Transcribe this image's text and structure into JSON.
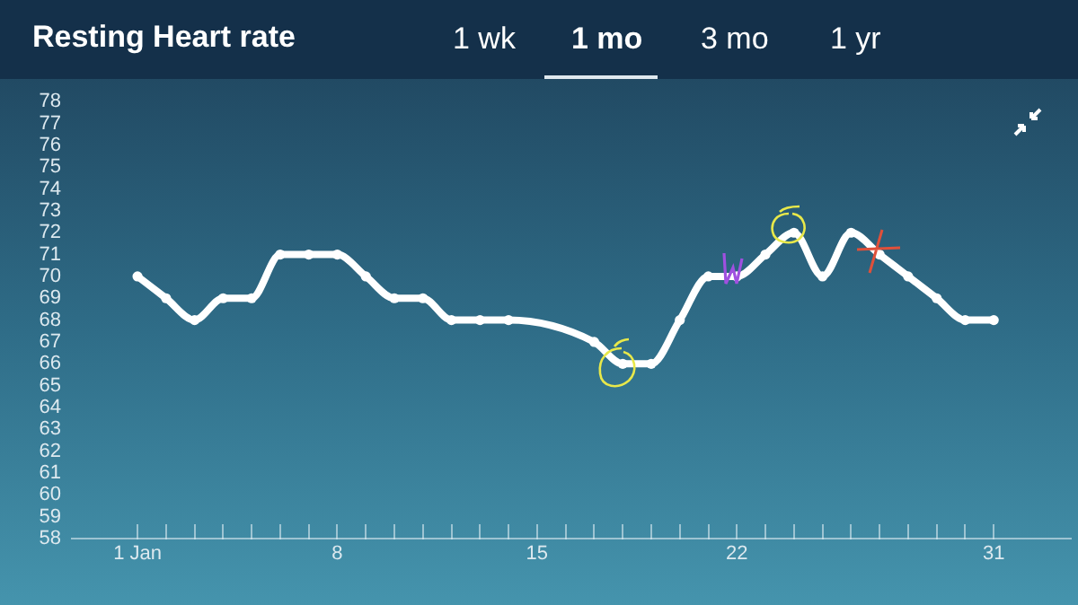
{
  "chart_data": {
    "type": "line",
    "title": "Resting Heart rate",
    "annotations": [
      "1 wk",
      "1 mo",
      "3 mo",
      "1 yr"
    ],
    "x": [
      1,
      2,
      3,
      4,
      5,
      6,
      7,
      8,
      9,
      10,
      11,
      12,
      13,
      14,
      15,
      16,
      17,
      18,
      19,
      20,
      21,
      22,
      23,
      24,
      25,
      26,
      27,
      28,
      29,
      30,
      31
    ],
    "series": [
      {
        "color": "#ffffff",
        "values": [
          70,
          69,
          68,
          69,
          69,
          71,
          71,
          71,
          70,
          69,
          69,
          68,
          68,
          68,
          null,
          null,
          67,
          66,
          66,
          68,
          70,
          70,
          71,
          72,
          70,
          72,
          71,
          70,
          69,
          68,
          68
        ]
      }
    ],
    "xlim": [
      -1.3,
      33.7
    ],
    "xticks": [
      {
        "value": 1,
        "label": "1 Jan"
      },
      {
        "value": 2,
        "label": null
      },
      {
        "value": 3,
        "label": null
      },
      {
        "value": 4,
        "label": null
      },
      {
        "value": 5,
        "label": null
      },
      {
        "value": 6,
        "label": null
      },
      {
        "value": 7,
        "label": null
      },
      8,
      {
        "value": 9,
        "label": null
      },
      {
        "value": 10,
        "label": null
      },
      {
        "value": 11,
        "label": null
      },
      {
        "value": 12,
        "label": null
      },
      {
        "value": 13,
        "label": null
      },
      {
        "value": 14,
        "label": null
      },
      15,
      {
        "value": 16,
        "label": null
      },
      {
        "value": 17,
        "label": null
      },
      {
        "value": 18,
        "label": null
      },
      {
        "value": 19,
        "label": null
      },
      {
        "value": 20,
        "label": null
      },
      {
        "value": 21,
        "label": null
      },
      22,
      {
        "value": 23,
        "label": null
      },
      {
        "value": 24,
        "label": null
      },
      {
        "value": 25,
        "label": null
      },
      {
        "value": 26,
        "label": null
      },
      {
        "value": 27,
        "label": null
      },
      {
        "value": 28,
        "label": null
      },
      {
        "value": 29,
        "label": null
      },
      {
        "value": 30,
        "label": null
      },
      31
    ],
    "ylim": [
      58,
      78
    ],
    "yticks": [
      58,
      59,
      60,
      61,
      62,
      63,
      64,
      65,
      66,
      67,
      68,
      69,
      70,
      71,
      72,
      73,
      74,
      75,
      76,
      77,
      78
    ],
    "grid": false,
    "legend": false,
    "marker": "circle",
    "line_style": "solid"
  }
}
